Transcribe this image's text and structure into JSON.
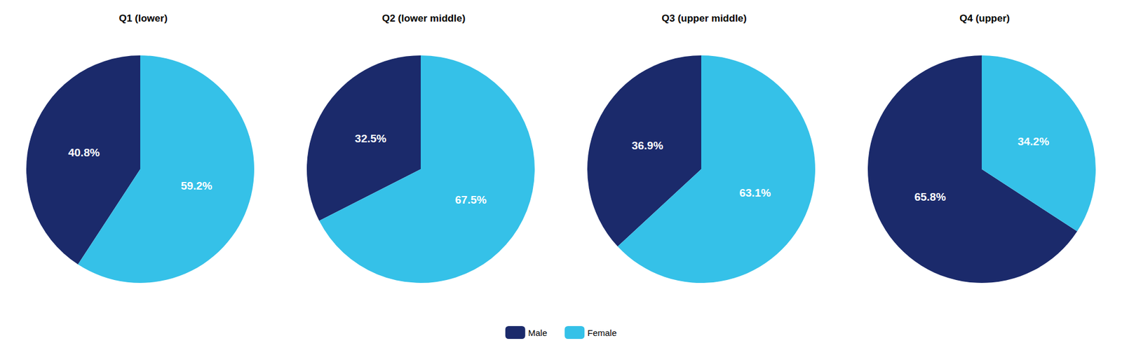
{
  "chart_data": [
    {
      "type": "pie",
      "title": "Q1 (lower)",
      "categories": [
        "Male",
        "Female"
      ],
      "values": [
        40.8,
        59.2
      ],
      "value_labels": [
        "40.8%",
        "59.2%"
      ],
      "colors": [
        "#1B2A6B",
        "#35C1E8"
      ],
      "data_labels": true,
      "legend": "bottom"
    },
    {
      "type": "pie",
      "title": "Q2 (lower middle)",
      "categories": [
        "Male",
        "Female"
      ],
      "values": [
        32.5,
        67.5
      ],
      "value_labels": [
        "32.5%",
        "67.5%"
      ],
      "colors": [
        "#1B2A6B",
        "#35C1E8"
      ],
      "data_labels": true,
      "legend": "bottom"
    },
    {
      "type": "pie",
      "title": "Q3 (upper middle)",
      "categories": [
        "Male",
        "Female"
      ],
      "values": [
        36.9,
        63.1
      ],
      "value_labels": [
        "36.9%",
        "63.1%"
      ],
      "colors": [
        "#1B2A6B",
        "#35C1E8"
      ],
      "data_labels": true,
      "legend": "bottom"
    },
    {
      "type": "pie",
      "title": "Q4 (upper)",
      "categories": [
        "Male",
        "Female"
      ],
      "values": [
        65.8,
        34.2
      ],
      "value_labels": [
        "65.8%",
        "34.2%"
      ],
      "colors": [
        "#1B2A6B",
        "#35C1E8"
      ],
      "data_labels": true,
      "legend": "bottom"
    }
  ]
}
